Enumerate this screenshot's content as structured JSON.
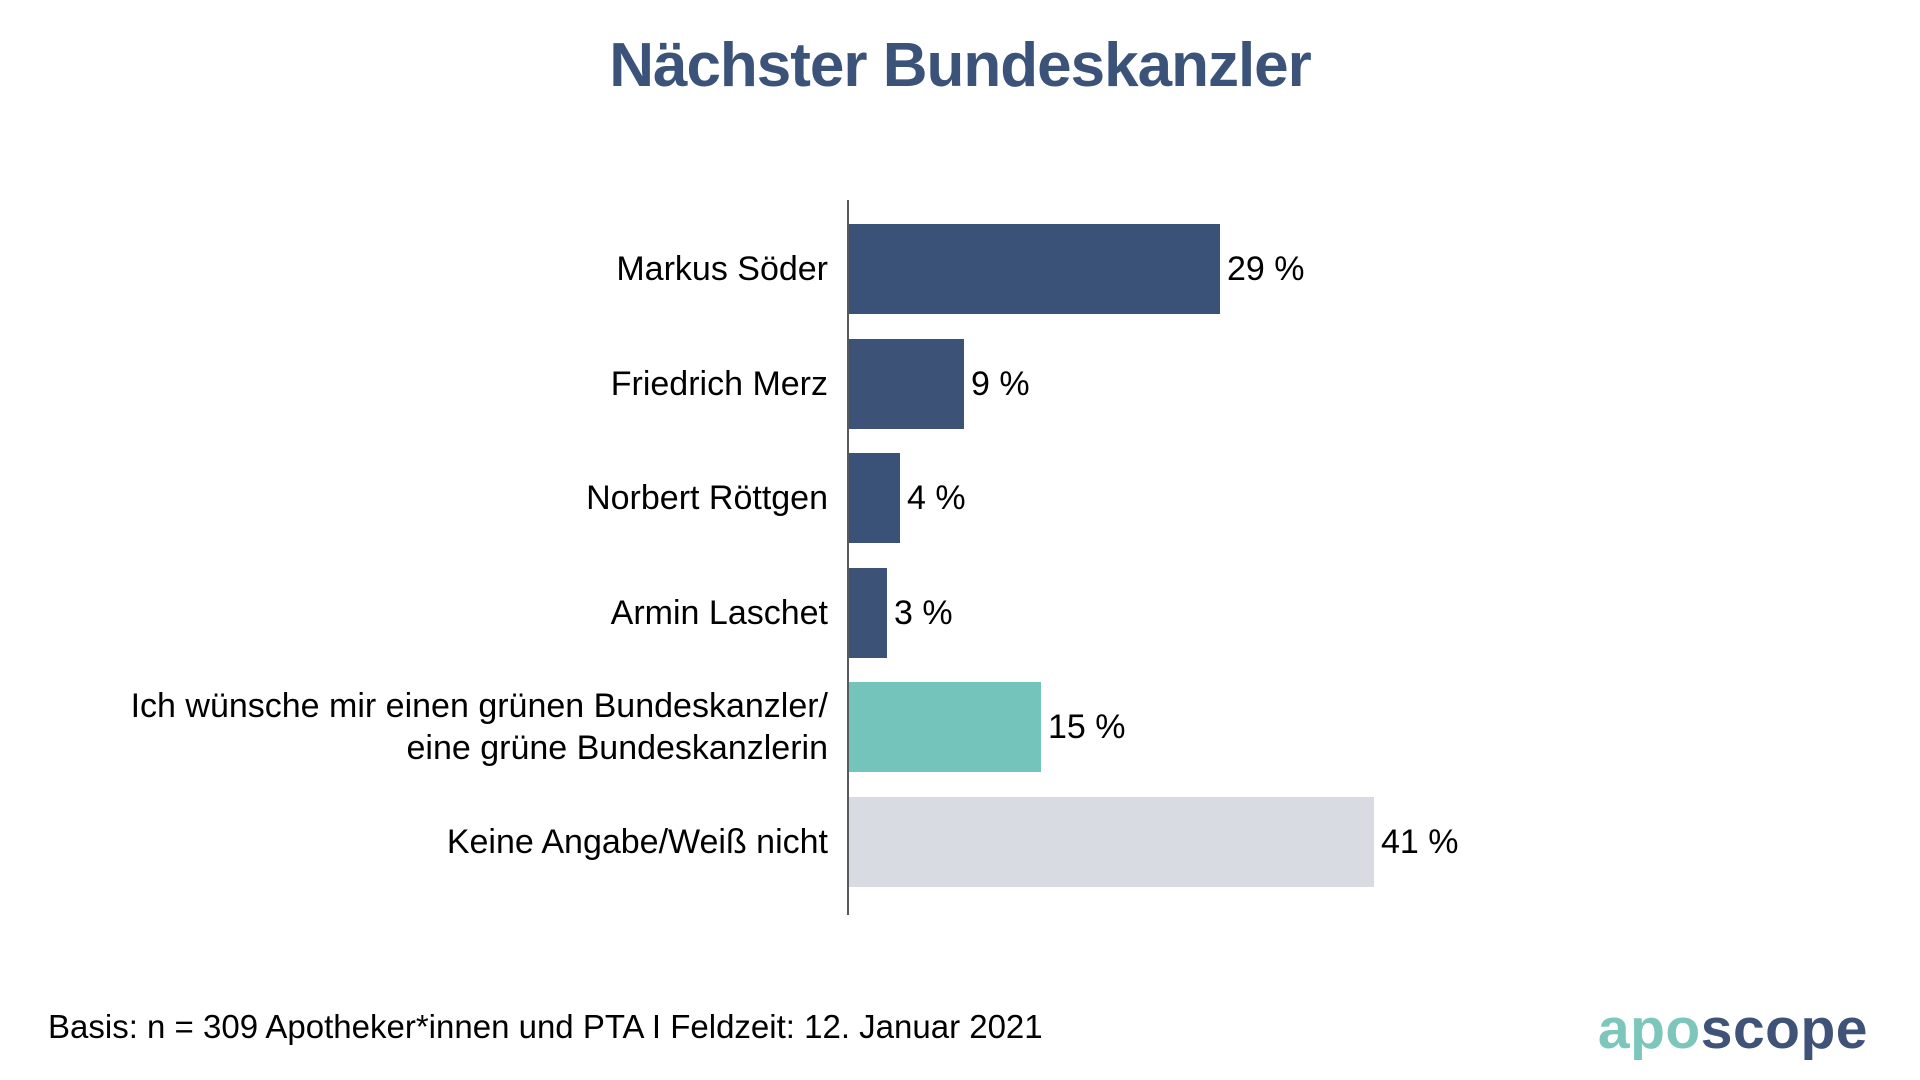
{
  "title": "Nächster Bundeskanzler",
  "chart_data": {
    "type": "bar",
    "orientation": "horizontal",
    "unit": "%",
    "categories": [
      "Markus Söder",
      "Friedrich Merz",
      "Norbert Röttgen",
      "Armin Laschet",
      "Ich wünsche mir einen grünen Bundeskanzler/\neine grüne Bundeskanzlerin",
      "Keine Angabe/Weiß nicht"
    ],
    "values": [
      29,
      9,
      4,
      3,
      15,
      41
    ],
    "value_labels": [
      "29 %",
      "9 %",
      "4 %",
      "3 %",
      "15 %",
      "41 %"
    ],
    "bar_colors": [
      "#3A5277",
      "#3D5277",
      "#3A5277",
      "#3C5277",
      "#74C4BB",
      "#D9DBE2"
    ],
    "xlim": [
      0,
      50
    ],
    "grid": "off",
    "legend": "none"
  },
  "colors": {
    "title": "#3C5379",
    "axis_line": "#58595b",
    "navy_bar": "#3A5277",
    "teal_bar": "#74C4BB",
    "gray_bar": "#D9DBE2",
    "text": "#000000",
    "logo_apo": "#7CC6BC",
    "logo_scope": "#3E5377"
  },
  "footer": {
    "basis": "Basis: n = 309 Apotheker*innen und PTA I Feldzeit: 12. Januar 2021"
  },
  "logo": {
    "part1": "apo",
    "part2": "scope"
  }
}
